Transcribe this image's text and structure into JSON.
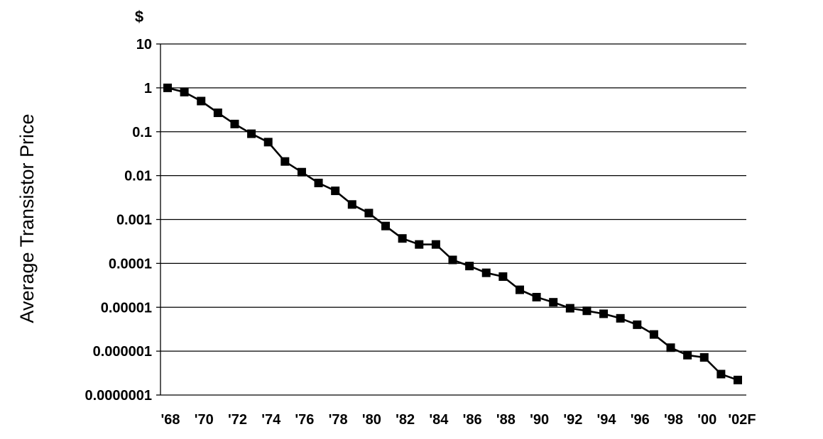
{
  "chart_data": {
    "type": "line",
    "ylabel": "Average Transistor Price",
    "y_unit": "$",
    "yscale": "log",
    "ylim": [
      1e-07,
      10
    ],
    "grid": true,
    "y_tick_labels": [
      "10",
      "1",
      "0.1",
      "0.01",
      "0.001",
      "0.0001",
      "0.00001",
      "0.000001",
      "0.0000001"
    ],
    "x_tick_labels": [
      "'68",
      "'70",
      "'72",
      "'74",
      "'76",
      "'78",
      "'80",
      "'82",
      "'84",
      "'86",
      "'88",
      "'90",
      "'92",
      "'94",
      "'96",
      "'98",
      "'00",
      "'02F"
    ],
    "x": [
      1968,
      1969,
      1970,
      1971,
      1972,
      1973,
      1974,
      1975,
      1976,
      1977,
      1978,
      1979,
      1980,
      1981,
      1982,
      1983,
      1984,
      1985,
      1986,
      1987,
      1988,
      1989,
      1990,
      1991,
      1992,
      1993,
      1994,
      1995,
      1996,
      1997,
      1998,
      1999,
      2000,
      2001,
      2002
    ],
    "series": [
      {
        "marker": "square",
        "color": "#000000",
        "values": [
          1.0,
          0.8,
          0.5,
          0.27,
          0.15,
          0.09,
          0.058,
          0.021,
          0.012,
          0.0068,
          0.0045,
          0.0022,
          0.0014,
          0.00071,
          0.00037,
          0.00027,
          0.00027,
          0.00012,
          8.7e-05,
          6.1e-05,
          5e-05,
          2.5e-05,
          1.7e-05,
          1.3e-05,
          9.5e-06,
          8.3e-06,
          7.1e-06,
          5.6e-06,
          4e-06,
          2.4e-06,
          1.2e-06,
          8.1e-07,
          7.2e-07,
          3e-07,
          2.2e-07
        ]
      }
    ]
  }
}
